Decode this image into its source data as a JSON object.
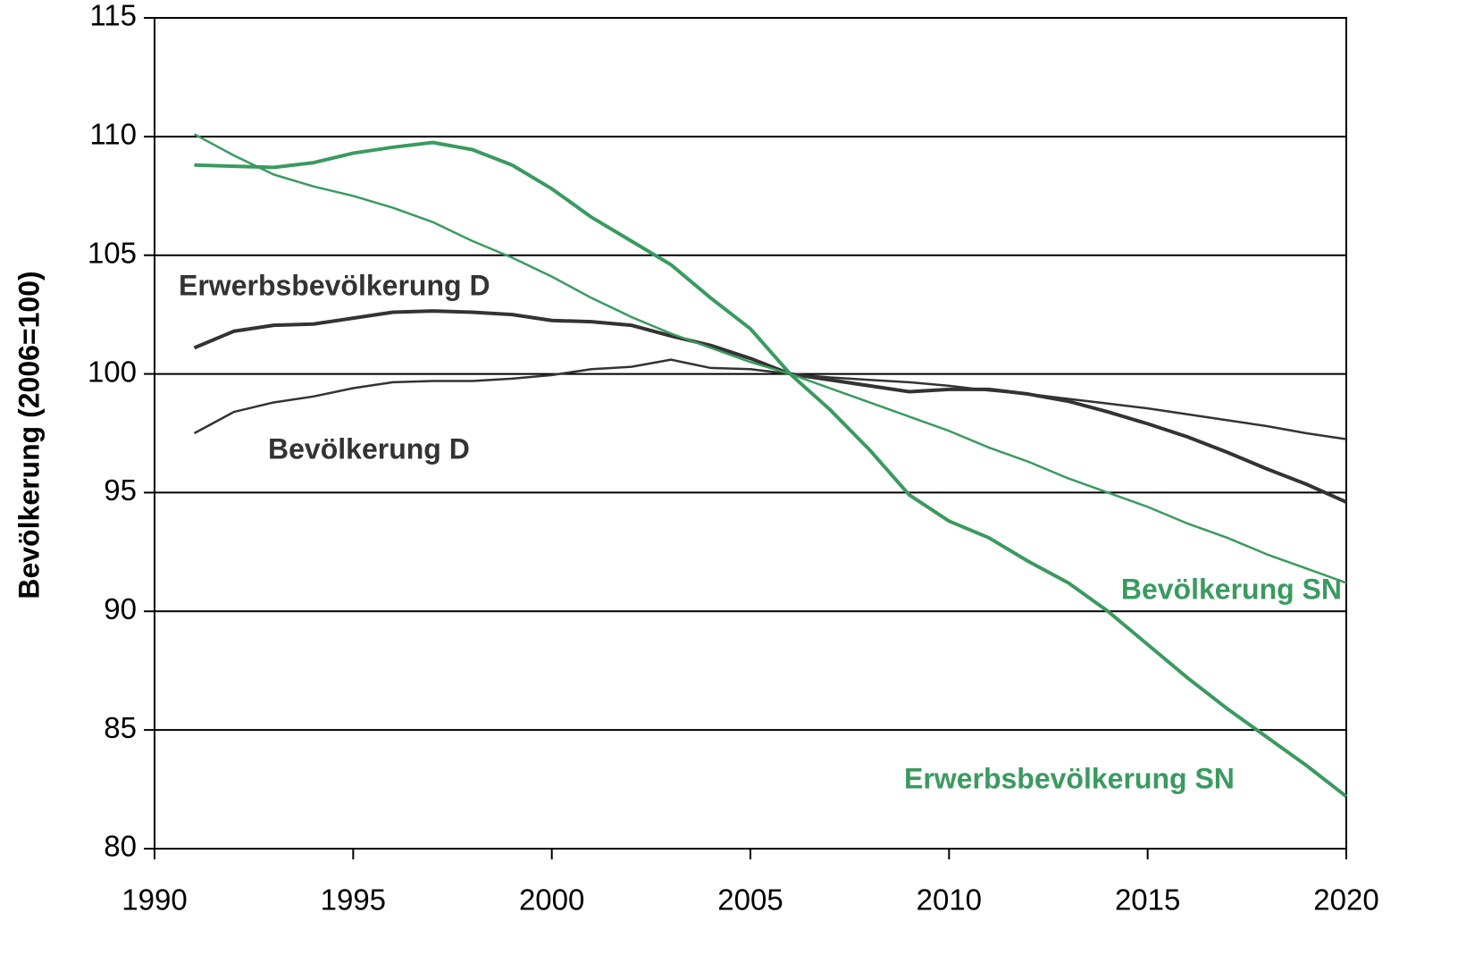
{
  "chart_data": {
    "type": "line",
    "y_label": "Bevölkerung (2006=100)",
    "x": [
      1991,
      1992,
      1993,
      1994,
      1995,
      1996,
      1997,
      1998,
      1999,
      2000,
      2001,
      2002,
      2003,
      2004,
      2005,
      2006,
      2007,
      2008,
      2009,
      2010,
      2011,
      2012,
      2013,
      2014,
      2015,
      2016,
      2017,
      2018,
      2019,
      2020
    ],
    "series": [
      {
        "name": "Erwerbsbevölkerung  D",
        "color": "#333333",
        "linewidth": 4,
        "values": [
          101.1,
          101.8,
          102.05,
          102.1,
          102.35,
          102.6,
          102.65,
          102.6,
          102.5,
          102.25,
          102.2,
          102.05,
          101.6,
          101.2,
          100.65,
          100,
          99.75,
          99.5,
          99.25,
          99.35,
          99.35,
          99.15,
          98.85,
          98.4,
          97.9,
          97.35,
          96.7,
          96.0,
          95.35,
          94.6
        ]
      },
      {
        "name": "Bevölkerung D",
        "color": "#333333",
        "linewidth": 2.5,
        "values": [
          97.5,
          98.4,
          98.8,
          99.05,
          99.4,
          99.65,
          99.7,
          99.7,
          99.8,
          99.95,
          100.2,
          100.3,
          100.6,
          100.25,
          100.2,
          100,
          99.85,
          99.75,
          99.65,
          99.5,
          99.3,
          99.15,
          98.95,
          98.75,
          98.55,
          98.3,
          98.05,
          97.8,
          97.5,
          97.25
        ]
      },
      {
        "name": "Bevölkerung SN",
        "color": "#3a9a5f",
        "linewidth": 2.5,
        "values": [
          110.1,
          109.2,
          108.4,
          107.9,
          107.5,
          107.0,
          106.4,
          105.6,
          104.9,
          104.1,
          103.2,
          102.4,
          101.7,
          101.1,
          100.5,
          100,
          99.4,
          98.8,
          98.2,
          97.6,
          96.9,
          96.3,
          95.6,
          95.0,
          94.4,
          93.7,
          93.1,
          92.4,
          91.8,
          91.2
        ]
      },
      {
        "name": "Erwerbsbevölkerung SN",
        "color": "#3a9a5f",
        "linewidth": 4,
        "values": [
          108.8,
          108.75,
          108.7,
          108.9,
          109.3,
          109.55,
          109.75,
          109.45,
          108.8,
          107.8,
          106.6,
          105.6,
          104.6,
          103.2,
          101.9,
          100,
          98.5,
          96.8,
          94.9,
          93.8,
          93.1,
          92.1,
          91.2,
          90.0,
          88.6,
          87.2,
          85.9,
          84.7,
          83.5,
          82.2
        ]
      }
    ],
    "xlim": [
      1990,
      2020
    ],
    "xticks": [
      1990,
      1995,
      2000,
      2005,
      2010,
      2015,
      2020
    ],
    "ylim": [
      80,
      115
    ],
    "yticks": [
      80,
      85,
      90,
      95,
      100,
      105,
      110,
      115
    ],
    "grid": true
  }
}
